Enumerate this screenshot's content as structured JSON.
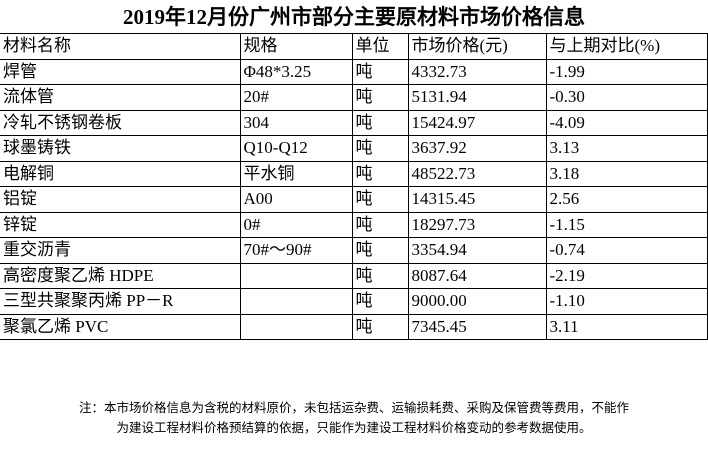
{
  "title": "2019年12月份广州市部分主要原材料市场价格信息",
  "table": {
    "headers": [
      "材料名称",
      "规格",
      "单位",
      "市场价格(元)",
      "与上期对比(%)"
    ],
    "rows": [
      [
        "焊管",
        "Φ48*3.25",
        "吨",
        "4332.73",
        "-1.99"
      ],
      [
        "流体管",
        "20#",
        "吨",
        "5131.94",
        "-0.30"
      ],
      [
        "冷轧不锈钢卷板",
        "304",
        "吨",
        "15424.97",
        "-4.09"
      ],
      [
        "球墨铸铁",
        "Q10-Q12",
        "吨",
        "3637.92",
        "3.13"
      ],
      [
        "电解铜",
        "平水铜",
        "吨",
        "48522.73",
        "3.18"
      ],
      [
        "铝锭",
        "A00",
        "吨",
        "14315.45",
        "2.56"
      ],
      [
        "锌锭",
        "0#",
        "吨",
        "18297.73",
        "-1.15"
      ],
      [
        "重交沥青",
        "70#～90#",
        "吨",
        "3354.94",
        "-0.74"
      ],
      [
        "高密度聚乙烯 HDPE",
        "",
        "吨",
        "8087.64",
        "-2.19"
      ],
      [
        "三型共聚聚丙烯 PP－R",
        "",
        "吨",
        "9000.00",
        "-1.10"
      ],
      [
        "聚氯乙烯 PVC",
        "",
        "吨",
        "7345.45",
        "3.11"
      ]
    ]
  },
  "note": {
    "line1": "注：本市场价格信息为含税的材料原价，未包括运杂费、运输损耗费、采购及保管费等费用，不能作",
    "line2": "为建设工程材料价格预结算的依据，只能作为建设工程材料价格变动的参考数据使用。"
  }
}
